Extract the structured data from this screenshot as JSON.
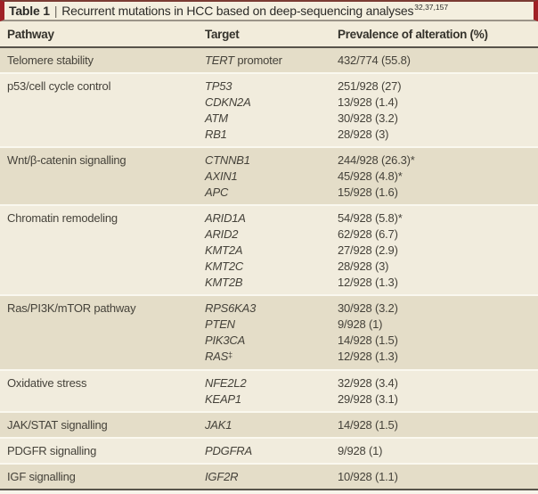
{
  "colors": {
    "accent_red": "#a02125",
    "title_bg": "#f4efdf",
    "header_bg": "#f2ecdb",
    "row_dark": "#e4ddc8",
    "row_light": "#f1ecdd",
    "rule_dark": "#57534a",
    "rule_grey": "#9b9488",
    "top_rule": "#7a3b33"
  },
  "table": {
    "number": "Table 1",
    "separator": "|",
    "title": "Recurrent mutations in HCC based on deep-sequencing analyses",
    "reference_superscript": "32,37,157",
    "columns": {
      "pathway": "Pathway",
      "target": "Target",
      "prevalence": "Prevalence of alteration (%)"
    },
    "rows": [
      {
        "pathway": "Telomere stability",
        "shade": "dark",
        "entries": [
          {
            "gene": "TERT",
            "gene_suffix": "promoter",
            "value": "432/774 (55.8)"
          }
        ]
      },
      {
        "pathway": "p53/cell cycle control",
        "shade": "light",
        "entries": [
          {
            "gene": "TP53",
            "value": "251/928 (27)"
          },
          {
            "gene": "CDKN2A",
            "value": "13/928 (1.4)"
          },
          {
            "gene": "ATM",
            "value": "30/928 (3.2)"
          },
          {
            "gene": "RB1",
            "value": "28/928 (3)"
          }
        ]
      },
      {
        "pathway": "Wnt/β-catenin signalling",
        "shade": "dark",
        "entries": [
          {
            "gene": "CTNNB1",
            "value": "244/928 (26.3)*"
          },
          {
            "gene": "AXIN1",
            "value": "45/928 (4.8)*"
          },
          {
            "gene": "APC",
            "value": "15/928 (1.6)"
          }
        ]
      },
      {
        "pathway": "Chromatin remodeling",
        "shade": "light",
        "entries": [
          {
            "gene": "ARID1A",
            "value": "54/928 (5.8)*"
          },
          {
            "gene": "ARID2",
            "value": "62/928 (6.7)"
          },
          {
            "gene": "KMT2A",
            "value": "27/928 (2.9)"
          },
          {
            "gene": "KMT2C",
            "value": "28/928 (3)"
          },
          {
            "gene": "KMT2B",
            "value": "12/928 (1.3)"
          }
        ]
      },
      {
        "pathway": "Ras/PI3K/mTOR pathway",
        "shade": "dark",
        "entries": [
          {
            "gene": "RPS6KA3",
            "value": "30/928 (3.2)"
          },
          {
            "gene": "PTEN",
            "value": "9/928 (1)"
          },
          {
            "gene": "PIK3CA",
            "value": "14/928 (1.5)"
          },
          {
            "gene": "RAS",
            "gene_sup": "‡",
            "value": "12/928 (1.3)"
          }
        ]
      },
      {
        "pathway": "Oxidative stress",
        "shade": "light",
        "entries": [
          {
            "gene": "NFE2L2",
            "value": "32/928 (3.4)"
          },
          {
            "gene": "KEAP1",
            "value": "29/928 (3.1)"
          }
        ]
      },
      {
        "pathway": "JAK/STAT signalling",
        "shade": "dark",
        "entries": [
          {
            "gene": "JAK1",
            "value": "14/928 (1.5)"
          }
        ]
      },
      {
        "pathway": "PDGFR signalling",
        "shade": "light",
        "entries": [
          {
            "gene": "PDGFRA",
            "value": "9/928 (1)"
          }
        ]
      },
      {
        "pathway": "IGF signalling",
        "shade": "dark",
        "entries": [
          {
            "gene": "IGF2R",
            "value": "10/928 (1.1)"
          }
        ]
      }
    ]
  }
}
